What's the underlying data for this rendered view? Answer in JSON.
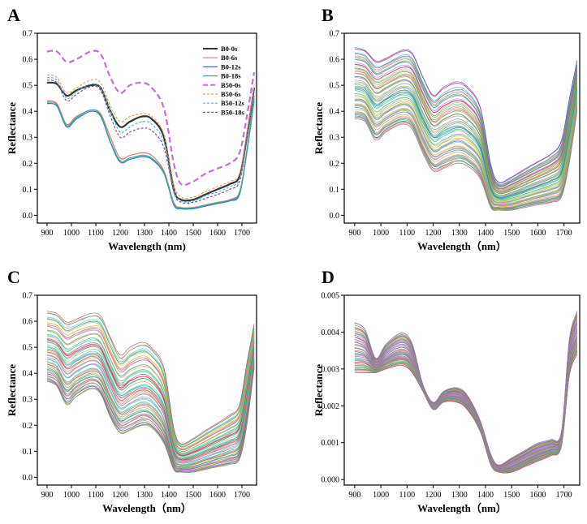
{
  "chart_data": [
    {
      "panel": "A",
      "type": "line",
      "xlabel": "Wavelength (nm)",
      "ylabel": "Reflectance",
      "xlim": [
        860,
        1760
      ],
      "ylim": [
        -0.03,
        0.7
      ],
      "xticks": [
        "900",
        "1000",
        "1100",
        "1200",
        "1300",
        "1400",
        "1500",
        "1600",
        "1700"
      ],
      "yticks": [
        "0.0",
        "0.1",
        "0.2",
        "0.3",
        "0.4",
        "0.5",
        "0.6",
        "0.7"
      ],
      "legend_position": "top-right",
      "series": [
        {
          "name": "B0-0s",
          "color": "#333333",
          "dash": "solid",
          "x": [
            900,
            940,
            980,
            1020,
            1080,
            1120,
            1160,
            1200,
            1240,
            1290,
            1330,
            1380,
            1420,
            1450,
            1500,
            1550,
            1600,
            1650,
            1690,
            1720,
            1750
          ],
          "y": [
            0.51,
            0.505,
            0.46,
            0.48,
            0.5,
            0.49,
            0.4,
            0.34,
            0.36,
            0.38,
            0.37,
            0.3,
            0.1,
            0.06,
            0.06,
            0.08,
            0.1,
            0.12,
            0.15,
            0.3,
            0.49
          ]
        },
        {
          "name": "B0-6s",
          "color": "#e8736c",
          "dash": "solid",
          "x": [
            900,
            940,
            980,
            1020,
            1080,
            1120,
            1160,
            1200,
            1240,
            1290,
            1330,
            1380,
            1420,
            1450,
            1500,
            1550,
            1600,
            1650,
            1690,
            1720,
            1750
          ],
          "y": [
            0.44,
            0.43,
            0.35,
            0.38,
            0.405,
            0.39,
            0.3,
            0.22,
            0.23,
            0.24,
            0.23,
            0.17,
            0.05,
            0.03,
            0.03,
            0.04,
            0.05,
            0.06,
            0.09,
            0.25,
            0.46
          ]
        },
        {
          "name": "B0-12s",
          "color": "#3a6fc4",
          "dash": "solid",
          "x": [
            900,
            940,
            980,
            1020,
            1080,
            1120,
            1160,
            1200,
            1240,
            1290,
            1330,
            1380,
            1420,
            1450,
            1500,
            1550,
            1600,
            1650,
            1690,
            1720,
            1750
          ],
          "y": [
            0.43,
            0.42,
            0.34,
            0.37,
            0.4,
            0.38,
            0.28,
            0.205,
            0.215,
            0.225,
            0.215,
            0.16,
            0.04,
            0.025,
            0.025,
            0.035,
            0.045,
            0.055,
            0.08,
            0.24,
            0.44
          ]
        },
        {
          "name": "B0-18s",
          "color": "#2bb39a",
          "dash": "solid",
          "x": [
            900,
            940,
            980,
            1020,
            1080,
            1120,
            1160,
            1200,
            1240,
            1290,
            1330,
            1380,
            1420,
            1450,
            1500,
            1550,
            1600,
            1650,
            1690,
            1720,
            1750
          ],
          "y": [
            0.435,
            0.425,
            0.345,
            0.375,
            0.405,
            0.385,
            0.285,
            0.21,
            0.22,
            0.23,
            0.22,
            0.165,
            0.045,
            0.028,
            0.028,
            0.038,
            0.048,
            0.058,
            0.085,
            0.245,
            0.45
          ]
        },
        {
          "name": "B50-0s",
          "color": "#c86ed8",
          "dash": "long",
          "x": [
            900,
            940,
            980,
            1020,
            1080,
            1120,
            1160,
            1200,
            1240,
            1290,
            1330,
            1380,
            1420,
            1450,
            1500,
            1550,
            1600,
            1650,
            1690,
            1720,
            1750
          ],
          "y": [
            0.63,
            0.63,
            0.59,
            0.6,
            0.63,
            0.62,
            0.53,
            0.47,
            0.5,
            0.51,
            0.49,
            0.41,
            0.2,
            0.12,
            0.13,
            0.16,
            0.18,
            0.2,
            0.24,
            0.38,
            0.55
          ]
        },
        {
          "name": "B50-6s",
          "color": "#f0a050",
          "dash": "short",
          "x": [
            900,
            940,
            980,
            1020,
            1080,
            1120,
            1160,
            1200,
            1240,
            1290,
            1330,
            1380,
            1420,
            1450,
            1500,
            1550,
            1600,
            1650,
            1690,
            1720,
            1750
          ],
          "y": [
            0.54,
            0.53,
            0.47,
            0.49,
            0.52,
            0.51,
            0.42,
            0.36,
            0.38,
            0.39,
            0.38,
            0.31,
            0.12,
            0.07,
            0.07,
            0.09,
            0.11,
            0.13,
            0.16,
            0.32,
            0.5
          ]
        },
        {
          "name": "B50-12s",
          "color": "#3fc2d8",
          "dash": "short",
          "x": [
            900,
            940,
            980,
            1020,
            1080,
            1120,
            1160,
            1200,
            1240,
            1290,
            1330,
            1380,
            1420,
            1450,
            1500,
            1550,
            1600,
            1650,
            1690,
            1720,
            1750
          ],
          "y": [
            0.53,
            0.52,
            0.45,
            0.475,
            0.505,
            0.49,
            0.4,
            0.32,
            0.34,
            0.36,
            0.35,
            0.28,
            0.1,
            0.055,
            0.055,
            0.075,
            0.09,
            0.11,
            0.14,
            0.3,
            0.49
          ]
        },
        {
          "name": "B50-18s",
          "color": "#8a4f8a",
          "dash": "short",
          "x": [
            900,
            940,
            980,
            1020,
            1080,
            1120,
            1160,
            1200,
            1240,
            1290,
            1330,
            1380,
            1420,
            1450,
            1500,
            1550,
            1600,
            1650,
            1690,
            1720,
            1750
          ],
          "y": [
            0.52,
            0.51,
            0.44,
            0.465,
            0.495,
            0.48,
            0.38,
            0.3,
            0.32,
            0.335,
            0.325,
            0.26,
            0.09,
            0.05,
            0.05,
            0.065,
            0.08,
            0.1,
            0.13,
            0.29,
            0.48
          ]
        }
      ]
    },
    {
      "panel": "B",
      "type": "line",
      "xlabel": "Wavelength（nm）",
      "ylabel": "Reflectance",
      "xlim": [
        860,
        1760
      ],
      "ylim": [
        -0.03,
        0.7
      ],
      "xticks": [
        "900",
        "1000",
        "1100",
        "1200",
        "1300",
        "1400",
        "1500",
        "1600",
        "1700"
      ],
      "yticks": [
        "0.0",
        "0.1",
        "0.2",
        "0.3",
        "0.4",
        "0.5",
        "0.6",
        "0.7"
      ],
      "line_count": 60,
      "x": [
        900,
        940,
        980,
        1020,
        1080,
        1120,
        1160,
        1200,
        1240,
        1290,
        1330,
        1380,
        1420,
        1450,
        1500,
        1550,
        1600,
        1650,
        1690,
        1720,
        1750
      ],
      "envelope_low": [
        0.37,
        0.36,
        0.29,
        0.32,
        0.35,
        0.33,
        0.24,
        0.17,
        0.18,
        0.2,
        0.19,
        0.14,
        0.03,
        0.02,
        0.02,
        0.03,
        0.04,
        0.05,
        0.07,
        0.2,
        0.4
      ],
      "envelope_high": [
        0.65,
        0.64,
        0.6,
        0.61,
        0.64,
        0.63,
        0.54,
        0.47,
        0.5,
        0.52,
        0.5,
        0.42,
        0.2,
        0.13,
        0.15,
        0.18,
        0.21,
        0.24,
        0.29,
        0.45,
        0.6
      ]
    },
    {
      "panel": "C",
      "type": "line",
      "xlabel": "Wavelength（nm）",
      "ylabel": "Reflectance",
      "xlim": [
        860,
        1760
      ],
      "ylim": [
        -0.03,
        0.7
      ],
      "xticks": [
        "900",
        "1000",
        "1100",
        "1200",
        "1300",
        "1400",
        "1500",
        "1600",
        "1700"
      ],
      "yticks": [
        "0.0",
        "0.1",
        "0.2",
        "0.3",
        "0.4",
        "0.5",
        "0.6",
        "0.7"
      ],
      "line_count": 60,
      "x": [
        900,
        940,
        980,
        1020,
        1080,
        1120,
        1160,
        1200,
        1240,
        1290,
        1330,
        1380,
        1420,
        1450,
        1500,
        1550,
        1600,
        1650,
        1690,
        1720,
        1750
      ],
      "envelope_low": [
        0.37,
        0.35,
        0.28,
        0.31,
        0.34,
        0.32,
        0.23,
        0.17,
        0.18,
        0.2,
        0.19,
        0.13,
        0.03,
        0.02,
        0.02,
        0.03,
        0.04,
        0.05,
        0.07,
        0.2,
        0.42
      ],
      "envelope_high": [
        0.64,
        0.63,
        0.6,
        0.61,
        0.63,
        0.62,
        0.54,
        0.47,
        0.5,
        0.52,
        0.5,
        0.42,
        0.19,
        0.13,
        0.15,
        0.18,
        0.21,
        0.24,
        0.28,
        0.44,
        0.59
      ]
    },
    {
      "panel": "D",
      "type": "line",
      "xlabel": "Wavelength（nm）",
      "ylabel": "Reflectance",
      "xlim": [
        860,
        1760
      ],
      "ylim": [
        -0.00015,
        0.005
      ],
      "xticks": [
        "900",
        "1000",
        "1100",
        "1200",
        "1300",
        "1400",
        "1500",
        "1600",
        "1700"
      ],
      "yticks": [
        "0.000",
        "0.001",
        "0.002",
        "0.003",
        "0.004",
        "0.005"
      ],
      "line_count": 60,
      "x": [
        900,
        940,
        980,
        1020,
        1080,
        1120,
        1160,
        1200,
        1240,
        1290,
        1330,
        1380,
        1420,
        1450,
        1500,
        1550,
        1600,
        1650,
        1690,
        1720,
        1750
      ],
      "envelope_low": [
        0.0029,
        0.0029,
        0.0029,
        0.003,
        0.0031,
        0.0029,
        0.0024,
        0.0019,
        0.0021,
        0.0021,
        0.0019,
        0.0013,
        0.0004,
        0.0002,
        0.0002,
        0.00035,
        0.0005,
        0.00065,
        0.0009,
        0.0028,
        0.0034
      ],
      "envelope_high": [
        0.0043,
        0.0041,
        0.0033,
        0.0037,
        0.004,
        0.0037,
        0.0026,
        0.0021,
        0.0024,
        0.0025,
        0.0023,
        0.0016,
        0.0007,
        0.0004,
        0.0006,
        0.0008,
        0.001,
        0.0011,
        0.0013,
        0.0038,
        0.0046
      ]
    }
  ],
  "panels": {
    "labels": [
      "A",
      "B",
      "C",
      "D"
    ]
  },
  "palette": [
    "#e8736c",
    "#f0a050",
    "#3a6fc4",
    "#2bb39a",
    "#8bc34a",
    "#3fc2d8",
    "#c86ed8",
    "#8a4f8a",
    "#7f7f7f",
    "#d4a017",
    "#4caf50",
    "#e91e63",
    "#9c7bd0",
    "#a0a0a0",
    "#5c8f3a"
  ]
}
